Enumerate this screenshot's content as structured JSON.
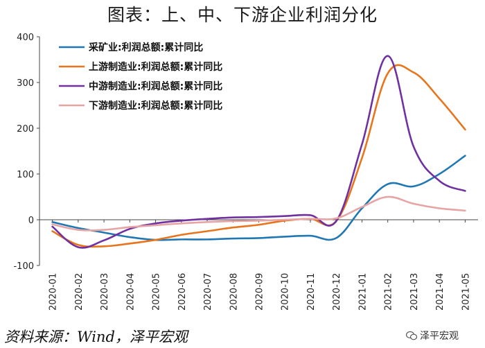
{
  "chart_data": {
    "type": "line",
    "title": "图表：上、中、下游企业利润分化",
    "x": [
      "2020-01",
      "2020-02",
      "2020-03",
      "2020-04",
      "2020-05",
      "2020-06",
      "2020-07",
      "2020-08",
      "2020-09",
      "2020-10",
      "2020-11",
      "2020-12",
      "2021-01",
      "2021-02",
      "2021-03",
      "2021-04",
      "2021-05"
    ],
    "ylim": [
      -100,
      400
    ],
    "yticks": [
      -100,
      0,
      100,
      200,
      300,
      400
    ],
    "legend_position": "top-left",
    "grid": false,
    "series": [
      {
        "name": "采矿业:利润总额:累计同比",
        "color": "#1f77b4",
        "values": [
          -5,
          -18,
          -28,
          -38,
          -44,
          -43,
          -43,
          -41,
          -40,
          -37,
          -35,
          -40,
          25,
          78,
          73,
          100,
          140
        ]
      },
      {
        "name": "上游制造业:利润总额:累计同比",
        "color": "#e8751c",
        "values": [
          -25,
          -55,
          -58,
          -52,
          -44,
          -33,
          -25,
          -17,
          -11,
          -2,
          2,
          -3,
          135,
          320,
          322,
          265,
          197
        ]
      },
      {
        "name": "中游制造业:利润总额:累计同比",
        "color": "#7030a0",
        "values": [
          -15,
          -60,
          -45,
          -20,
          -8,
          -2,
          2,
          5,
          6,
          8,
          10,
          -3,
          165,
          358,
          160,
          85,
          63
        ]
      },
      {
        "name": "下游制造业:利润总额:累计同比",
        "color": "#e6a4a4",
        "values": [
          -10,
          -22,
          -22,
          -16,
          -12,
          -8,
          -5,
          -3,
          -2,
          0,
          2,
          3,
          28,
          50,
          35,
          25,
          20
        ]
      }
    ]
  },
  "source": "资料来源：Wind，泽平宏观",
  "watermark": "泽平宏观"
}
